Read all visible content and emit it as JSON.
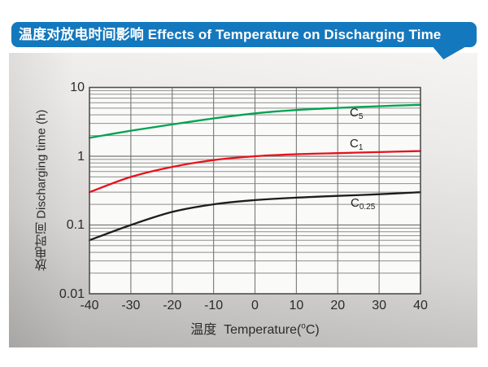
{
  "banner": {
    "title": "温度对放电时间影响 Effects of Temperature on Discharging Time"
  },
  "colors": {
    "banner_bg": "#1478be",
    "banner_text": "#ffffff",
    "plot_bg": "#fafaf8",
    "grid_minor": "#8e8e8e",
    "grid_major": "#777777",
    "frame": "#4f4f4f",
    "text": "#2b2b2b",
    "series_green": "#00a351",
    "series_red": "#e8111a",
    "series_black": "#1d1d1d"
  },
  "chart_data": {
    "type": "line",
    "title": "温度对放电时间影响 Effects of Temperature on Discharging Time",
    "ylabel": "放电时间 Discharging time (h)",
    "xlabel": {
      "prefix": "温度  Temperature(",
      "sup": "o",
      "suffix": "C)"
    },
    "xlim": [
      -40,
      40
    ],
    "ylim": [
      0.01,
      10
    ],
    "y_scale": "log",
    "grid": true,
    "legend_position": "inline-right",
    "x_ticks": [
      -40,
      -30,
      -20,
      -10,
      0,
      10,
      20,
      30,
      40
    ],
    "y_ticks": [
      10,
      1,
      0.1,
      0.01
    ],
    "x": [
      -40,
      -30,
      -20,
      -10,
      0,
      10,
      20,
      30,
      40
    ],
    "series": [
      {
        "name": "C5",
        "label": {
          "main": "C",
          "sub": "5"
        },
        "color": "#00a351",
        "values": [
          1.85,
          2.35,
          2.9,
          3.55,
          4.2,
          4.7,
          5.05,
          5.35,
          5.6
        ]
      },
      {
        "name": "C1",
        "label": {
          "main": "C",
          "sub": "1"
        },
        "color": "#e8111a",
        "values": [
          0.3,
          0.5,
          0.7,
          0.88,
          1.0,
          1.07,
          1.11,
          1.15,
          1.19
        ]
      },
      {
        "name": "C0.25",
        "label": {
          "main": "C",
          "sub": "0.25"
        },
        "color": "#1d1d1d",
        "values": [
          0.06,
          0.1,
          0.155,
          0.2,
          0.23,
          0.25,
          0.265,
          0.28,
          0.3
        ]
      }
    ]
  }
}
